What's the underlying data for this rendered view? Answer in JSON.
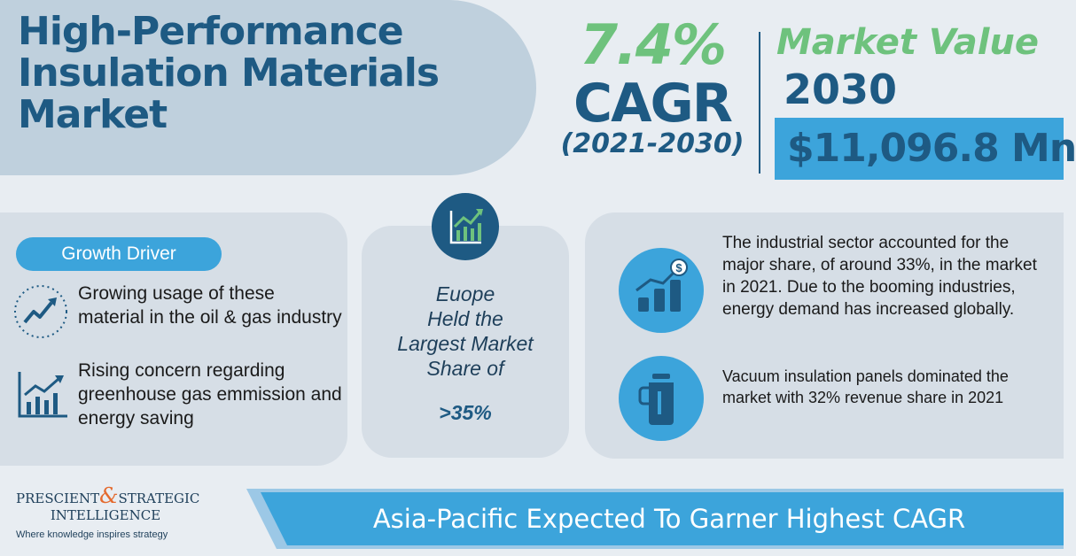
{
  "header": {
    "title_lines": [
      "High-Performance",
      "Insulation Materials",
      "Market"
    ]
  },
  "cagr": {
    "value": "7.4%",
    "label": "CAGR",
    "period": "(2021-2030)"
  },
  "market_value": {
    "title": "Market Value",
    "year": "2030",
    "amount": "$11,096.8 Mn"
  },
  "growth_driver": {
    "label": "Growth Driver",
    "items": [
      {
        "text": "Growing usage of these material in the oil & gas industry",
        "icon": "trend-up-icon"
      },
      {
        "text": "Rising concern regarding greenhouse gas emmission and energy saving",
        "icon": "bar-chart-icon"
      }
    ]
  },
  "region": {
    "icon": "growth-chart-icon",
    "text_lines": [
      "Euope",
      "Held the",
      "Largest Market",
      "Share of"
    ],
    "share": ">35%"
  },
  "stats": [
    {
      "icon": "money-growth-icon",
      "text": "The industrial sector accounted for the major share, of around 33%, in the market in 2021. Due to the booming industries, energy demand has increased globally."
    },
    {
      "icon": "thermos-icon",
      "text": "Vacuum insulation panels dominated the market with 32% revenue share in 2021"
    }
  ],
  "logo": {
    "line1_a": "PRESCIENT",
    "amp": "&",
    "line1_b": "STRATEGIC",
    "line2": "INTELLIGENCE",
    "tagline": "Where knowledge inspires strategy"
  },
  "banner": {
    "text": "Asia-Pacific Expected To Garner Highest CAGR"
  },
  "colors": {
    "dark_blue": "#1e5a83",
    "green": "#6ec27d",
    "accent_blue": "#3ca4db",
    "panel": "#d6dee6",
    "background": "#e8edf2"
  }
}
